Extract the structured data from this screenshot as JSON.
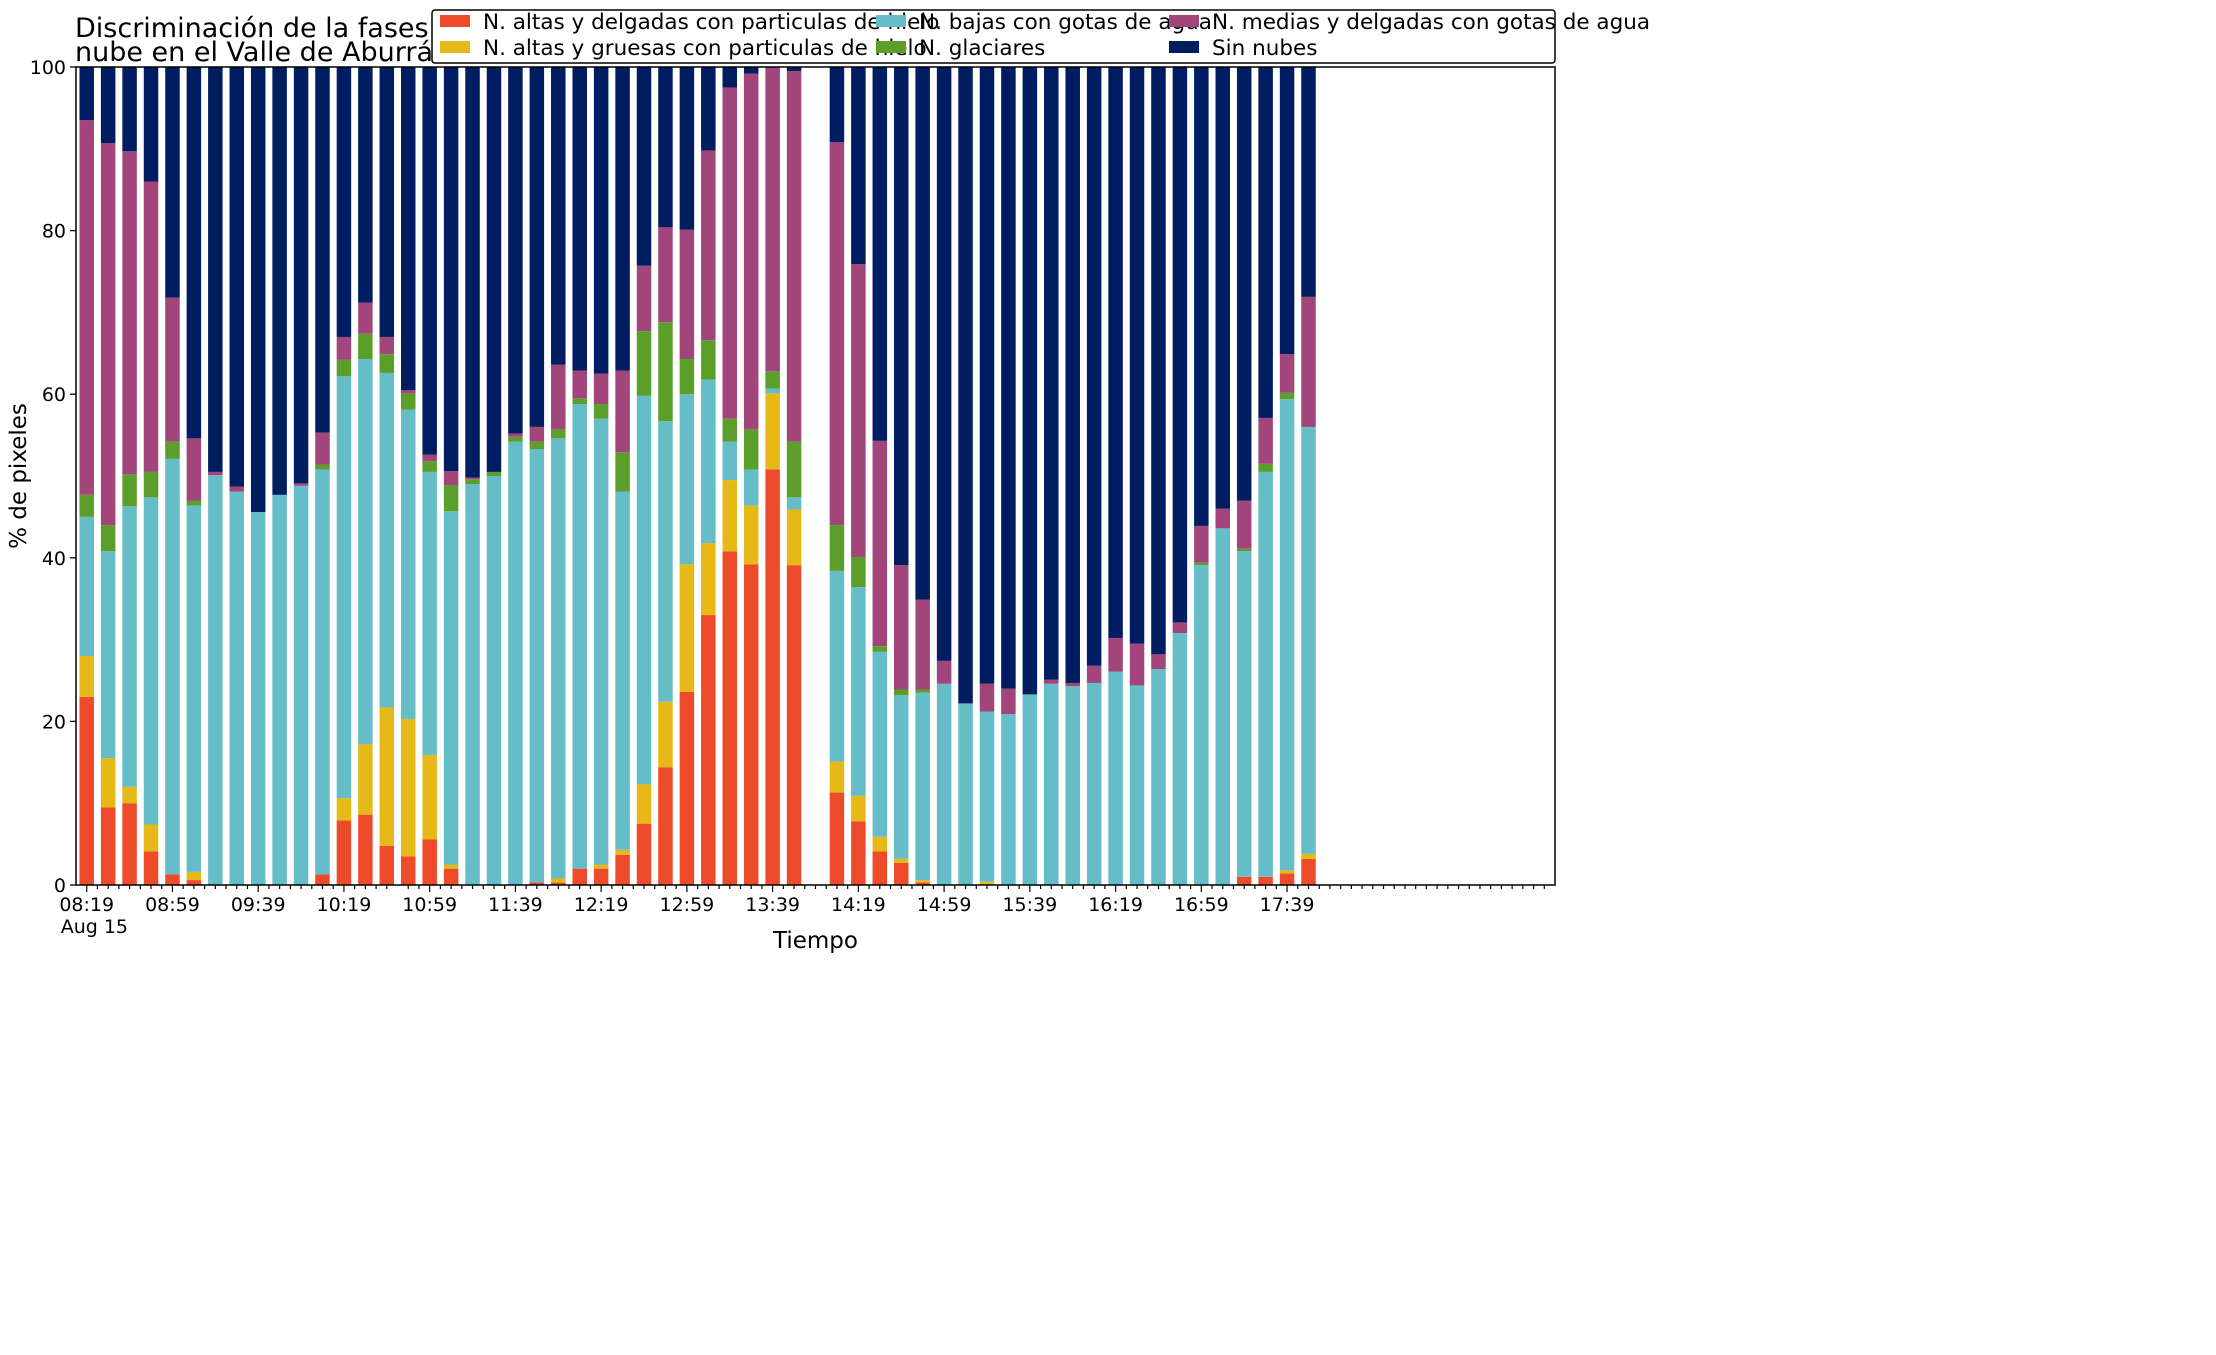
{
  "chart_data": {
    "type": "bar",
    "stacked": true,
    "title_lines": [
      "Discriminación de la fases de la",
      "nube en el Valle de Aburrá"
    ],
    "xlabel": "Tiempo",
    "ylabel": "% de pixeles",
    "ylim": [
      0,
      100
    ],
    "yticks": [
      "0",
      "20",
      "40",
      "60",
      "80",
      "100"
    ],
    "x_tick_labels": [
      "08:19",
      "08:59",
      "09:39",
      "10:19",
      "10:59",
      "11:39",
      "12:19",
      "12:59",
      "13:39",
      "14:19",
      "14:59",
      "15:39",
      "16:19",
      "16:59",
      "17:39"
    ],
    "x_sub_label": "Aug 15",
    "grid": false,
    "legend_position": "top-right",
    "colors": [
      "#ee4b2b",
      "#e6b919",
      "#65bdc8",
      "#5b9e2a",
      "#a2457a",
      "#001d61"
    ],
    "times": [
      "08:19",
      "08:24",
      "08:29",
      "08:34",
      "08:39",
      "08:44",
      "08:49",
      "08:54",
      "08:59",
      "09:04",
      "09:09",
      "09:14",
      "09:19",
      "09:24",
      "09:29",
      "09:34",
      "09:39",
      "09:44",
      "09:49",
      "09:54",
      "09:59",
      "10:04",
      "10:09",
      "10:14",
      "10:19",
      "10:24",
      "10:29",
      "10:34",
      "10:39",
      "10:49",
      "10:54",
      "10:59",
      "11:04",
      "11:09",
      "11:14",
      "11:19",
      "11:24",
      "11:29",
      "11:34",
      "11:39",
      "11:44",
      "11:49",
      "11:54",
      "11:59",
      "12:04",
      "12:09",
      "12:14",
      "12:19",
      "12:24",
      "12:29",
      "12:34",
      "12:39",
      "12:44",
      "12:49",
      "12:54",
      "12:59",
      "13:04",
      "13:09",
      "13:14",
      "13:19",
      "13:24",
      "13:29",
      "13:34",
      "13:39",
      "13:44",
      "13:49",
      "13:54",
      "13:59",
      "14:04",
      "14:09",
      "14:14",
      "14:19",
      "14:24",
      "14:29",
      "14:34",
      "14:39",
      "14:44",
      "14:49",
      "14:54",
      "14:59",
      "15:04",
      "15:09",
      "15:14",
      "15:19",
      "15:24",
      "15:29",
      "15:34",
      "15:39",
      "15:44",
      "15:49",
      "15:54",
      "15:59",
      "16:04",
      "16:09",
      "16:14",
      "16:19",
      "16:24",
      "16:29",
      "16:34",
      "16:39",
      "16:44",
      "16:49",
      "16:54",
      "16:59",
      "17:04",
      "17:09",
      "17:14",
      "17:19",
      "17:24",
      "17:29",
      "17:34",
      "17:39",
      "17:44",
      "17:49",
      "17:54",
      "17:59",
      "18:04",
      "18:09",
      "18:14",
      "18:19",
      "18:24",
      "18:29",
      "18:34",
      "18:39",
      "18:44",
      "18:49",
      "18:54",
      "18:59",
      "19:04",
      "19:09",
      "19:14",
      "19:19",
      "19:24",
      "19:29",
      "19:34",
      "19:39"
    ],
    "bars": [
      {
        "time": "08:19",
        "values": [
          23.0,
          5.0,
          17.0,
          2.7,
          45.8,
          6.5
        ]
      },
      {
        "time": "08:29",
        "values": [
          9.5,
          6.0,
          25.3,
          3.2,
          46.7,
          9.3
        ]
      },
      {
        "time": "08:39",
        "values": [
          10.0,
          2.0,
          34.3,
          3.9,
          39.5,
          10.3
        ]
      },
      {
        "time": "08:49",
        "values": [
          4.1,
          3.3,
          40.0,
          3.1,
          35.5,
          14.0
        ]
      },
      {
        "time": "08:59",
        "values": [
          1.3,
          0.0,
          50.8,
          2.1,
          17.6,
          28.2
        ]
      },
      {
        "time": "09:09",
        "values": [
          0.6,
          1.0,
          44.8,
          0.6,
          7.6,
          45.4
        ]
      },
      {
        "time": "09:19",
        "values": [
          0.0,
          0.0,
          50.1,
          0.0,
          0.4,
          49.5
        ]
      },
      {
        "time": "09:29",
        "values": [
          0.0,
          0.0,
          48.1,
          0.0,
          0.6,
          51.3
        ]
      },
      {
        "time": "09:39",
        "values": [
          0.0,
          0.0,
          45.6,
          0.0,
          0.0,
          54.4
        ]
      },
      {
        "time": "09:49",
        "values": [
          0.0,
          0.0,
          47.7,
          0.0,
          0.0,
          52.3
        ]
      },
      {
        "time": "09:59",
        "values": [
          0.0,
          0.0,
          48.8,
          0.0,
          0.3,
          50.9
        ]
      },
      {
        "time": "10:09",
        "values": [
          1.3,
          0.0,
          49.5,
          0.6,
          3.9,
          44.7
        ]
      },
      {
        "time": "10:19",
        "values": [
          7.9,
          2.7,
          51.6,
          2.0,
          2.8,
          33.0
        ]
      },
      {
        "time": "10:29",
        "values": [
          8.6,
          8.6,
          47.1,
          3.1,
          3.8,
          28.8
        ]
      },
      {
        "time": "10:39",
        "values": [
          4.8,
          16.9,
          40.9,
          2.3,
          2.1,
          33.0
        ]
      },
      {
        "time": "10:49",
        "values": [
          3.5,
          16.8,
          37.8,
          2.0,
          0.4,
          39.5
        ]
      },
      {
        "time": "10:59",
        "values": [
          5.6,
          10.3,
          34.6,
          1.3,
          0.8,
          47.4
        ]
      },
      {
        "time": "11:09",
        "values": [
          2.0,
          0.5,
          43.2,
          3.2,
          1.7,
          49.4
        ]
      },
      {
        "time": "11:19",
        "values": [
          0.0,
          0.0,
          49.0,
          0.6,
          0.2,
          50.2
        ]
      },
      {
        "time": "11:29",
        "values": [
          0.0,
          0.0,
          50.0,
          0.5,
          0.0,
          49.5
        ]
      },
      {
        "time": "11:39",
        "values": [
          0.0,
          0.0,
          54.2,
          0.6,
          0.4,
          44.8
        ]
      },
      {
        "time": "11:49",
        "values": [
          0.3,
          0.0,
          53.0,
          0.9,
          1.8,
          44.0
        ]
      },
      {
        "time": "11:59",
        "values": [
          0.3,
          0.5,
          53.8,
          1.1,
          7.9,
          36.4
        ]
      },
      {
        "time": "12:09",
        "values": [
          2.0,
          0.0,
          56.8,
          0.7,
          3.4,
          37.1
        ]
      },
      {
        "time": "12:19",
        "values": [
          2.0,
          0.5,
          54.5,
          1.8,
          3.7,
          37.5
        ]
      },
      {
        "time": "12:29",
        "values": [
          3.7,
          0.6,
          43.8,
          4.8,
          10.0,
          37.1
        ]
      },
      {
        "time": "12:39",
        "values": [
          7.5,
          4.8,
          47.5,
          7.9,
          8.0,
          24.3
        ]
      },
      {
        "time": "12:49",
        "values": [
          14.4,
          8.0,
          34.3,
          12.1,
          11.6,
          19.6
        ]
      },
      {
        "time": "12:59",
        "values": [
          23.6,
          15.6,
          20.8,
          4.3,
          15.8,
          19.9
        ]
      },
      {
        "time": "13:09",
        "values": [
          33.0,
          8.8,
          20.0,
          4.8,
          23.2,
          10.2
        ]
      },
      {
        "time": "13:19",
        "values": [
          40.8,
          8.7,
          4.7,
          2.8,
          40.5,
          2.5
        ]
      },
      {
        "time": "13:29",
        "values": [
          39.2,
          7.2,
          4.4,
          4.9,
          43.5,
          0.8
        ]
      },
      {
        "time": "13:39",
        "values": [
          50.8,
          9.3,
          0.6,
          2.1,
          37.2,
          0.0
        ]
      },
      {
        "time": "13:49",
        "values": [
          39.1,
          6.8,
          1.5,
          6.8,
          45.3,
          0.5
        ]
      },
      {
        "time": "14:09",
        "values": [
          11.3,
          3.8,
          23.3,
          5.6,
          46.8,
          9.2
        ]
      },
      {
        "time": "14:19",
        "values": [
          7.8,
          3.1,
          25.5,
          3.7,
          35.8,
          24.1
        ]
      },
      {
        "time": "14:29",
        "values": [
          4.1,
          1.8,
          22.6,
          0.7,
          25.1,
          45.7
        ]
      },
      {
        "time": "14:39",
        "values": [
          2.7,
          0.5,
          20.0,
          0.7,
          15.2,
          60.9
        ]
      },
      {
        "time": "14:49",
        "values": [
          0.3,
          0.3,
          22.9,
          0.4,
          11.0,
          65.1
        ]
      },
      {
        "time": "14:59",
        "values": [
          0.0,
          0.0,
          24.6,
          0.0,
          2.8,
          72.6
        ]
      },
      {
        "time": "15:09",
        "values": [
          0.0,
          0.0,
          22.2,
          0.0,
          0.0,
          77.8
        ]
      },
      {
        "time": "15:19",
        "values": [
          0.0,
          0.4,
          20.8,
          0.0,
          3.4,
          75.4
        ]
      },
      {
        "time": "15:29",
        "values": [
          0.0,
          0.0,
          20.9,
          0.0,
          3.1,
          76.0
        ]
      },
      {
        "time": "15:39",
        "values": [
          0.0,
          0.0,
          23.3,
          0.0,
          0.0,
          76.7
        ]
      },
      {
        "time": "15:49",
        "values": [
          0.0,
          0.0,
          24.6,
          0.0,
          0.5,
          74.9
        ]
      },
      {
        "time": "15:59",
        "values": [
          0.0,
          0.0,
          24.3,
          0.0,
          0.4,
          75.3
        ]
      },
      {
        "time": "16:09",
        "values": [
          0.0,
          0.0,
          24.7,
          0.0,
          2.1,
          73.2
        ]
      },
      {
        "time": "16:19",
        "values": [
          0.0,
          0.0,
          26.1,
          0.0,
          4.1,
          69.8
        ]
      },
      {
        "time": "16:29",
        "values": [
          0.0,
          0.0,
          24.4,
          0.0,
          5.1,
          70.5
        ]
      },
      {
        "time": "16:39",
        "values": [
          0.0,
          0.0,
          26.4,
          0.0,
          1.8,
          71.8
        ]
      },
      {
        "time": "16:49",
        "values": [
          0.0,
          0.0,
          30.8,
          0.0,
          1.3,
          67.9
        ]
      },
      {
        "time": "16:59",
        "values": [
          0.0,
          0.0,
          39.1,
          0.3,
          4.5,
          56.1
        ]
      },
      {
        "time": "17:09",
        "values": [
          0.0,
          0.0,
          43.6,
          0.0,
          2.4,
          54.0
        ]
      },
      {
        "time": "17:19",
        "values": [
          1.0,
          0.0,
          39.8,
          0.3,
          5.9,
          53.0
        ]
      },
      {
        "time": "17:29",
        "values": [
          1.0,
          0.0,
          49.5,
          1.0,
          5.6,
          42.9
        ]
      },
      {
        "time": "17:39",
        "values": [
          1.4,
          0.4,
          57.6,
          0.8,
          4.7,
          35.1
        ]
      },
      {
        "time": "17:49",
        "values": [
          3.2,
          0.6,
          52.2,
          0.0,
          15.9,
          28.1
        ]
      }
    ],
    "series": [
      {
        "name": "N. altas y delgadas con particulas de hielo",
        "legend_col": 0,
        "legend_row": 0
      },
      {
        "name": "N. altas y gruesas con particulas de hielo",
        "legend_col": 0,
        "legend_row": 1
      },
      {
        "name": "N. bajas con gotas de agua",
        "legend_col": 1,
        "legend_row": 0
      },
      {
        "name": "N. glaciares",
        "legend_col": 1,
        "legend_row": 1
      },
      {
        "name": "N. medias y delgadas con gotas de agua",
        "legend_col": 2,
        "legend_row": 0
      },
      {
        "name": "Sin nubes",
        "legend_col": 2,
        "legend_row": 1
      }
    ]
  }
}
